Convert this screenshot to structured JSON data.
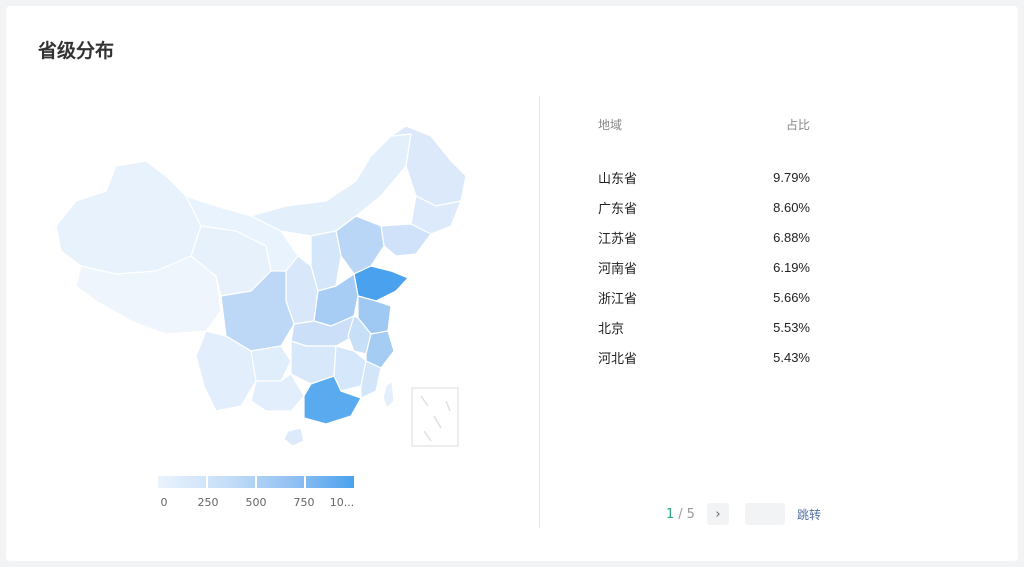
{
  "page": {
    "title": "省级分布"
  },
  "legend": {
    "labels": [
      "0",
      "250",
      "500",
      "750",
      "10..."
    ]
  },
  "table": {
    "header": {
      "region": "地域",
      "share": "占比"
    },
    "rows": [
      {
        "region": "山东省",
        "share": "9.79%"
      },
      {
        "region": "广东省",
        "share": "8.60%"
      },
      {
        "region": "江苏省",
        "share": "6.88%"
      },
      {
        "region": "河南省",
        "share": "6.19%"
      },
      {
        "region": "浙江省",
        "share": "5.66%"
      },
      {
        "region": "北京",
        "share": "5.53%"
      },
      {
        "region": "河北省",
        "share": "5.43%"
      }
    ]
  },
  "pagination": {
    "current": "1",
    "separator": "/",
    "total": "5",
    "jump_label": "跳转",
    "input_value": ""
  },
  "colors": {
    "accent_green": "#2aa87a",
    "map_low": "#eaf3fd",
    "map_high": "#4aa2ee",
    "link": "#5570a6"
  },
  "icons": {
    "next": "chevron-right-icon"
  }
}
